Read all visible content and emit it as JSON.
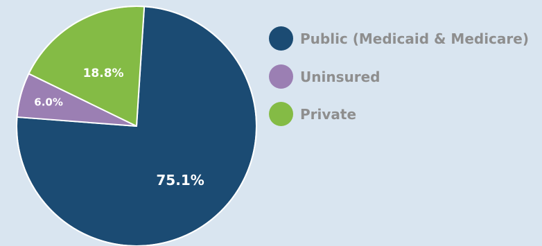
{
  "chart_data": {
    "type": "pie",
    "categories": [
      "Public (Medicaid & Medicare)",
      "Uninsured",
      "Private"
    ],
    "values": [
      75.1,
      6.0,
      18.8
    ],
    "value_labels": [
      "75.1%",
      "6.0%",
      "18.8%"
    ],
    "colors": [
      "#1b4b73",
      "#9b7fb3",
      "#84bb45"
    ],
    "title": "",
    "legend_placement": "right",
    "background": "#d9e5f0"
  },
  "legend": {
    "items": [
      {
        "label": "Public (Medicaid & Medicare)",
        "color": "#1b4b73"
      },
      {
        "label": "Uninsured",
        "color": "#9b7fb3"
      },
      {
        "label": "Private",
        "color": "#84bb45"
      }
    ]
  }
}
